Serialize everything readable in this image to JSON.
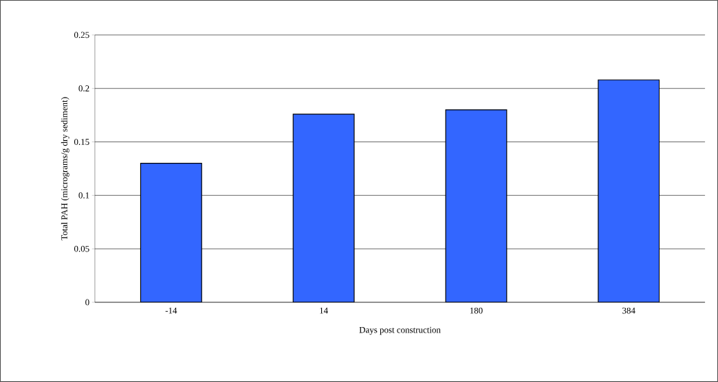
{
  "chart_data": {
    "type": "bar",
    "xlabel": "Days post construction",
    "ylabel": "Total PAH (micrograms/g dry sediment)",
    "categories": [
      "-14",
      "14",
      "180",
      "384"
    ],
    "values": [
      0.13,
      0.176,
      0.18,
      0.208
    ],
    "color": "#3366ff",
    "ylim": [
      0,
      0.25
    ],
    "yticks": [
      0,
      0.05,
      0.1,
      0.15,
      0.2,
      0.25
    ],
    "grid": "y"
  }
}
